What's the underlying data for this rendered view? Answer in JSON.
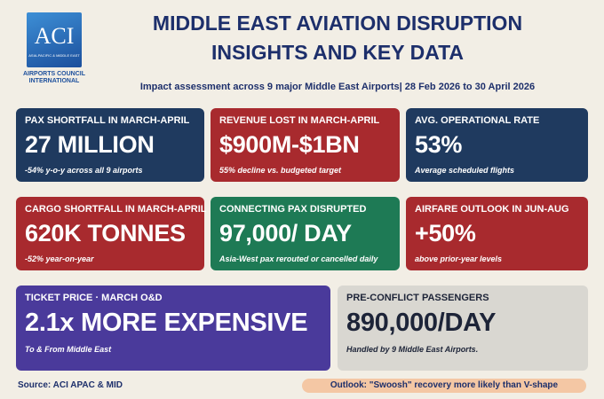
{
  "logo": {
    "mark": "ACI",
    "region": "ASIA-PACIFIC & MIDDLE EAST",
    "name": "AIRPORTS COUNCIL INTERNATIONAL"
  },
  "header": {
    "title_line1": "MIDDLE EAST AVIATION DISRUPTION",
    "title_line2": "INSIGHTS AND KEY DATA",
    "subtitle": "Impact assessment across 9 major Middle East Airports| 28 Feb 2026 to 30 April 2026"
  },
  "cards": [
    {
      "label": "PAX SHORTFALL IN MARCH-APRIL",
      "value": "27 MILLION",
      "note": "-54% y-o-y across all 9 airports"
    },
    {
      "label": "REVENUE LOST IN MARCH-APRIL",
      "value": "$900M-$1BN",
      "note": "55% decline vs. budgeted target"
    },
    {
      "label": "AVG. OPERATIONAL RATE",
      "value": "53%",
      "note": "Average scheduled flights"
    },
    {
      "label": "CARGO SHORTFALL IN MARCH-APRIL",
      "value": "620K TONNES",
      "note": "-52% year-on-year"
    },
    {
      "label": "CONNECTING PAX DISRUPTED",
      "value": "97,000/ DAY",
      "note": "Asia-West pax rerouted or cancelled daily"
    },
    {
      "label": "AIRFARE OUTLOOK IN JUN-AUG",
      "value": "+50%",
      "note": "above prior-year levels"
    },
    {
      "label": "TICKET PRICE · MARCH O&D",
      "value": "2.1x MORE EXPENSIVE",
      "note": "To & From Middle East"
    },
    {
      "label": "PRE-CONFLICT PASSENGERS",
      "value": "890,000/DAY",
      "note": "Handled by 9 Middle East Airports."
    }
  ],
  "footer": {
    "source": "Source: ACI APAC & MID",
    "outlook": "Outlook: \"Swoosh\" recovery more likely than V-shape"
  }
}
